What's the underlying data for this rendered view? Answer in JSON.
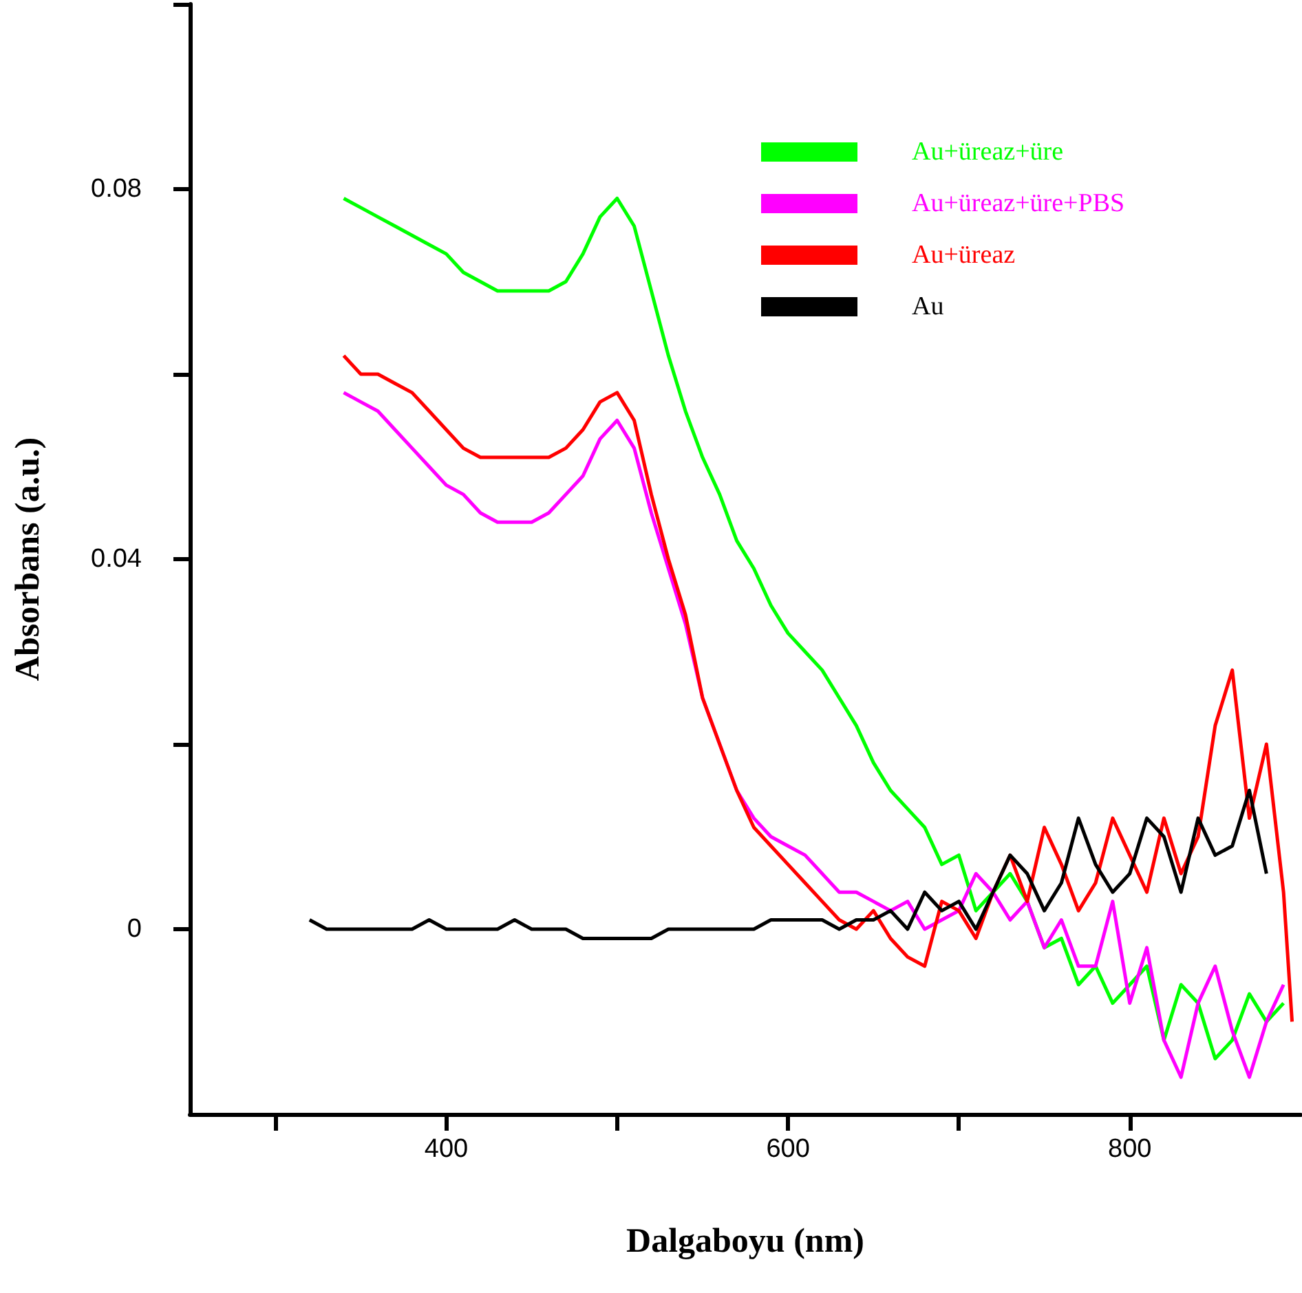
{
  "chart_data": {
    "type": "line",
    "xlabel": "Dalgaboyu (nm)",
    "ylabel": "Absorbans (a.u.)",
    "xlim": [
      250,
      900
    ],
    "xticks": [
      {
        "value": 300,
        "label": null
      },
      400,
      {
        "value": 500,
        "label": null
      },
      600,
      {
        "value": 700,
        "label": null
      },
      800
    ],
    "ylim": [
      -0.02,
      0.1
    ],
    "yticks": [
      0,
      {
        "value": 0.02,
        "label": null
      },
      0.04,
      {
        "value": 0.06,
        "label": null
      },
      0.08,
      {
        "value": 0.1,
        "label": null
      }
    ],
    "grid": false,
    "legend": "top right",
    "marker": "none",
    "line_style": "solid",
    "series": [
      {
        "name": "Au+üreaz+üre",
        "color": "#00ff00",
        "x": [
          340,
          350,
          360,
          370,
          380,
          390,
          400,
          410,
          420,
          430,
          440,
          450,
          460,
          470,
          480,
          490,
          500,
          510,
          520,
          530,
          540,
          550,
          560,
          570,
          580,
          590,
          600,
          610,
          620,
          630,
          640,
          650,
          660,
          670,
          680,
          690,
          700,
          710,
          720,
          730,
          740,
          750,
          760,
          770,
          780,
          790,
          800,
          810,
          820,
          830,
          840,
          850,
          860,
          870,
          880,
          890
        ],
        "values": [
          0.079,
          0.078,
          0.077,
          0.076,
          0.075,
          0.074,
          0.073,
          0.071,
          0.07,
          0.069,
          0.069,
          0.069,
          0.069,
          0.07,
          0.073,
          0.077,
          0.079,
          0.076,
          0.069,
          0.062,
          0.056,
          0.051,
          0.047,
          0.042,
          0.039,
          0.035,
          0.032,
          0.03,
          0.028,
          0.025,
          0.022,
          0.018,
          0.015,
          0.013,
          0.011,
          0.007,
          0.008,
          0.002,
          0.004,
          0.006,
          0.003,
          -0.002,
          -0.001,
          -0.006,
          -0.004,
          -0.008,
          -0.006,
          -0.004,
          -0.012,
          -0.006,
          -0.008,
          -0.014,
          -0.012,
          -0.007,
          -0.01,
          -0.008
        ]
      },
      {
        "name": "Au+üreaz+üre+PBS",
        "color": "#ff00ff",
        "x": [
          340,
          350,
          360,
          370,
          380,
          390,
          400,
          410,
          420,
          430,
          440,
          450,
          460,
          470,
          480,
          490,
          500,
          510,
          520,
          530,
          540,
          550,
          560,
          570,
          580,
          590,
          600,
          610,
          620,
          630,
          640,
          650,
          660,
          670,
          680,
          690,
          700,
          710,
          720,
          730,
          740,
          750,
          760,
          770,
          780,
          790,
          800,
          810,
          820,
          830,
          840,
          850,
          860,
          870,
          880,
          890
        ],
        "values": [
          0.058,
          0.057,
          0.056,
          0.054,
          0.052,
          0.05,
          0.048,
          0.047,
          0.045,
          0.044,
          0.044,
          0.044,
          0.045,
          0.047,
          0.049,
          0.053,
          0.055,
          0.052,
          0.045,
          0.039,
          0.033,
          0.025,
          0.02,
          0.015,
          0.012,
          0.01,
          0.009,
          0.008,
          0.006,
          0.004,
          0.004,
          0.003,
          0.002,
          0.003,
          0.0,
          0.001,
          0.002,
          0.006,
          0.004,
          0.001,
          0.003,
          -0.002,
          0.001,
          -0.004,
          -0.004,
          0.003,
          -0.008,
          -0.002,
          -0.012,
          -0.016,
          -0.008,
          -0.004,
          -0.011,
          -0.016,
          -0.01,
          -0.006
        ]
      },
      {
        "name": "Au+üreaz",
        "color": "#ff0000",
        "x": [
          340,
          350,
          360,
          370,
          380,
          390,
          400,
          410,
          420,
          430,
          440,
          450,
          460,
          470,
          480,
          490,
          500,
          510,
          520,
          530,
          540,
          550,
          560,
          570,
          580,
          590,
          600,
          610,
          620,
          630,
          640,
          650,
          660,
          670,
          680,
          690,
          700,
          710,
          720,
          730,
          740,
          750,
          760,
          770,
          780,
          790,
          800,
          810,
          820,
          830,
          840,
          850,
          860,
          870,
          880,
          890,
          895
        ],
        "values": [
          0.062,
          0.06,
          0.06,
          0.059,
          0.058,
          0.056,
          0.054,
          0.052,
          0.051,
          0.051,
          0.051,
          0.051,
          0.051,
          0.052,
          0.054,
          0.057,
          0.058,
          0.055,
          0.047,
          0.04,
          0.034,
          0.025,
          0.02,
          0.015,
          0.011,
          0.009,
          0.007,
          0.005,
          0.003,
          0.001,
          0.0,
          0.002,
          -0.001,
          -0.003,
          -0.004,
          0.003,
          0.002,
          -0.001,
          0.004,
          0.008,
          0.003,
          0.011,
          0.007,
          0.002,
          0.005,
          0.012,
          0.008,
          0.004,
          0.012,
          0.006,
          0.01,
          0.022,
          0.028,
          0.012,
          0.02,
          0.004,
          -0.01
        ]
      },
      {
        "name": "Au",
        "color": "#000000",
        "x": [
          320,
          330,
          340,
          350,
          360,
          370,
          380,
          390,
          400,
          410,
          420,
          430,
          440,
          450,
          460,
          470,
          480,
          490,
          500,
          510,
          520,
          530,
          540,
          550,
          560,
          570,
          580,
          590,
          600,
          610,
          620,
          630,
          640,
          650,
          660,
          670,
          680,
          690,
          700,
          710,
          720,
          730,
          740,
          750,
          760,
          770,
          780,
          790,
          800,
          810,
          820,
          830,
          840,
          850,
          860,
          870,
          880
        ],
        "values": [
          0.001,
          0.0,
          0.0,
          0.0,
          0.0,
          0.0,
          0.0,
          0.001,
          0.0,
          0.0,
          0.0,
          0.0,
          0.001,
          0.0,
          0.0,
          0.0,
          -0.001,
          -0.001,
          -0.001,
          -0.001,
          -0.001,
          0.0,
          0.0,
          0.0,
          0.0,
          0.0,
          0.0,
          0.001,
          0.001,
          0.001,
          0.001,
          0.0,
          0.001,
          0.001,
          0.002,
          0.0,
          0.004,
          0.002,
          0.003,
          0.0,
          0.004,
          0.008,
          0.006,
          0.002,
          0.005,
          0.012,
          0.007,
          0.004,
          0.006,
          0.012,
          0.01,
          0.004,
          0.012,
          0.008,
          0.009,
          0.015,
          0.006
        ]
      }
    ]
  }
}
